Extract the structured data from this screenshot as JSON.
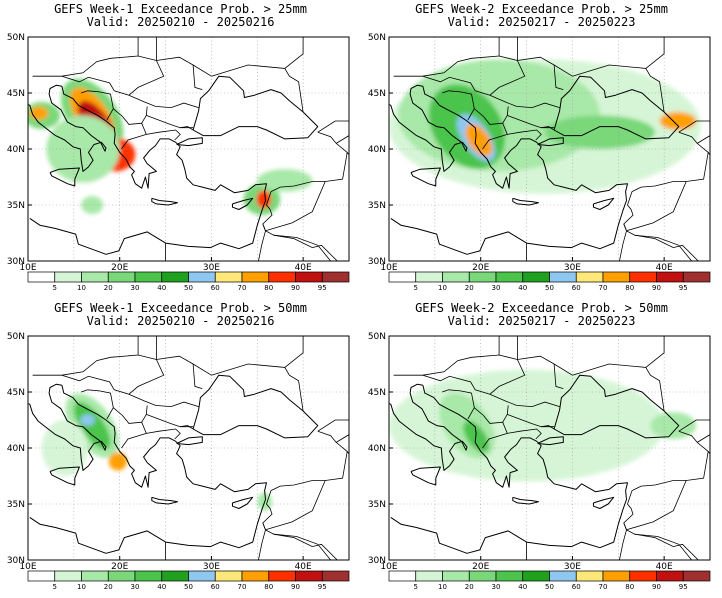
{
  "panels": [
    {
      "title1": "GEFS Week-1 Exceedance Prob. > 25mm",
      "title2": "Valid: 20250210 - 20250216",
      "blobs": [
        {
          "lon": 11.5,
          "lat": 43.0,
          "rx": 2.0,
          "ry": 1.2,
          "level": 3
        },
        {
          "lon": 11.2,
          "lat": 43.2,
          "rx": 1.0,
          "ry": 0.6,
          "level": 8
        },
        {
          "lon": 17.0,
          "lat": 43.0,
          "rx": 4.5,
          "ry": 2.2,
          "level": 3,
          "rot": 55
        },
        {
          "lon": 17.0,
          "lat": 43.0,
          "rx": 3.5,
          "ry": 1.4,
          "level": 8,
          "rot": 55
        },
        {
          "lon": 17.5,
          "lat": 42.2,
          "rx": 3.0,
          "ry": 1.1,
          "level": 10,
          "rot": 55
        },
        {
          "lon": 19.5,
          "lat": 39.5,
          "rx": 2.2,
          "ry": 1.5,
          "level": 9
        },
        {
          "lon": 16.0,
          "lat": 40.0,
          "rx": 4.0,
          "ry": 3.0,
          "level": 2
        },
        {
          "lon": 17.0,
          "lat": 35.0,
          "rx": 1.2,
          "ry": 0.8,
          "level": 2
        },
        {
          "lon": 35.5,
          "lat": 35.5,
          "rx": 2.0,
          "ry": 1.4,
          "level": 3
        },
        {
          "lon": 35.7,
          "lat": 35.5,
          "rx": 0.8,
          "ry": 0.8,
          "level": 9
        },
        {
          "lon": 38.0,
          "lat": 37.2,
          "rx": 3.0,
          "ry": 1.0,
          "level": 2
        }
      ]
    },
    {
      "title1": "GEFS Week-2 Exceedance Prob. > 25mm",
      "title2": "Valid: 20250217 - 20250223",
      "blobs": [
        {
          "lon": 27.0,
          "lat": 42.0,
          "rx": 17.0,
          "ry": 6.0,
          "level": 1
        },
        {
          "lon": 22.0,
          "lat": 43.0,
          "rx": 11.0,
          "ry": 5.0,
          "level": 2
        },
        {
          "lon": 18.5,
          "lat": 42.0,
          "rx": 5.0,
          "ry": 3.0,
          "level": 4,
          "rot": 55
        },
        {
          "lon": 19.5,
          "lat": 41.0,
          "rx": 3.0,
          "ry": 1.2,
          "level": 6,
          "rot": 55
        },
        {
          "lon": 19.8,
          "lat": 40.8,
          "rx": 2.0,
          "ry": 0.9,
          "level": 8,
          "rot": 55
        },
        {
          "lon": 41.5,
          "lat": 42.5,
          "rx": 2.0,
          "ry": 0.8,
          "level": 8
        },
        {
          "lon": 33.0,
          "lat": 41.5,
          "rx": 6.0,
          "ry": 1.5,
          "level": 3
        }
      ]
    },
    {
      "title1": "GEFS Week-1 Exceedance Prob. > 50mm",
      "title2": "Valid: 20250210 - 20250216",
      "blobs": [
        {
          "lon": 17.0,
          "lat": 42.0,
          "rx": 4.0,
          "ry": 1.8,
          "level": 2,
          "rot": 55
        },
        {
          "lon": 17.0,
          "lat": 42.0,
          "rx": 3.0,
          "ry": 1.0,
          "level": 4,
          "rot": 55
        },
        {
          "lon": 16.5,
          "lat": 42.5,
          "rx": 0.8,
          "ry": 0.5,
          "level": 6
        },
        {
          "lon": 19.8,
          "lat": 38.8,
          "rx": 1.0,
          "ry": 0.8,
          "level": 8
        },
        {
          "lon": 35.8,
          "lat": 35.2,
          "rx": 0.8,
          "ry": 0.8,
          "level": 2
        },
        {
          "lon": 14.0,
          "lat": 40.0,
          "rx": 2.5,
          "ry": 2.5,
          "level": 1
        }
      ]
    },
    {
      "title1": "GEFS Week-2 Exceedance Prob. > 50mm",
      "title2": "Valid: 20250217 - 20250223",
      "blobs": [
        {
          "lon": 25.0,
          "lat": 42.0,
          "rx": 15.0,
          "ry": 5.0,
          "level": 1
        },
        {
          "lon": 18.5,
          "lat": 42.0,
          "rx": 4.0,
          "ry": 2.0,
          "level": 2,
          "rot": 55
        },
        {
          "lon": 19.5,
          "lat": 41.0,
          "rx": 2.0,
          "ry": 0.8,
          "level": 4,
          "rot": 55
        },
        {
          "lon": 41.0,
          "lat": 42.0,
          "rx": 2.5,
          "ry": 1.2,
          "level": 2
        }
      ]
    }
  ],
  "lon_ticks": [
    "10E",
    "20E",
    "30E",
    "40E"
  ],
  "lat_ticks": [
    "30N",
    "35N",
    "40N",
    "45N",
    "50N"
  ],
  "colorbar": {
    "labels": [
      "5",
      "10",
      "20",
      "30",
      "40",
      "50",
      "60",
      "70",
      "80",
      "90",
      "95"
    ],
    "colors": [
      "#ffffff",
      "#d6f5d6",
      "#a8e8a8",
      "#7ad87a",
      "#4cc44c",
      "#1fa01f",
      "#8ec8f0",
      "#ffe87a",
      "#ffa000",
      "#ff3000",
      "#c01010",
      "#a03030"
    ]
  }
}
